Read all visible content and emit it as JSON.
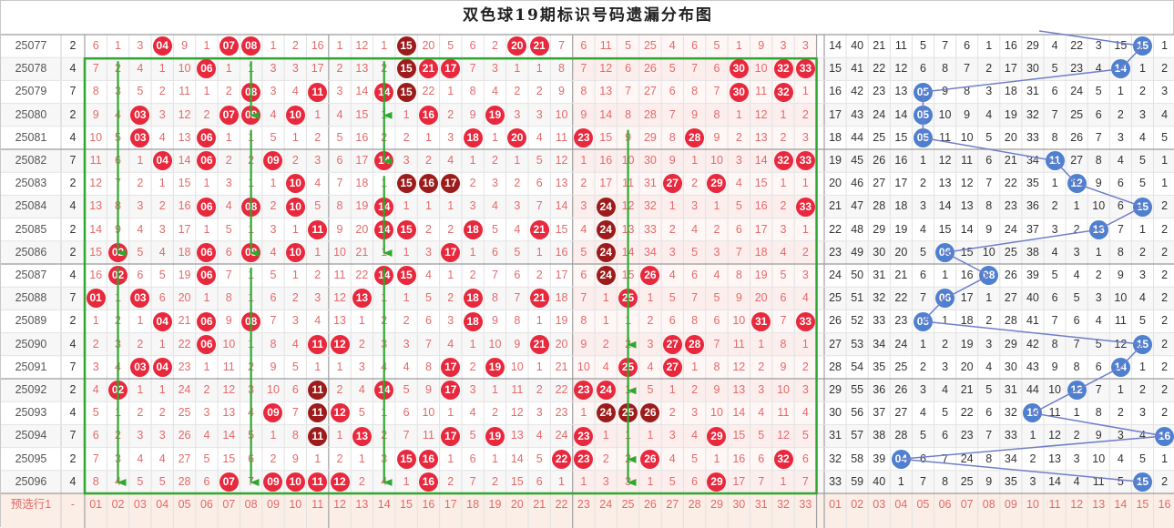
{
  "title": "双色球19期标识号码遗漏分布图",
  "colors": {
    "red_ball": "#e8283c",
    "dark_ball": "#9c1c1c",
    "blue_ball": "#4f7fcf",
    "green_box": "#2ea82e"
  },
  "footer_label": "预选行1",
  "footer_dash": "-",
  "red_numbers": [
    "01",
    "02",
    "03",
    "04",
    "05",
    "06",
    "07",
    "08",
    "09",
    "10",
    "11",
    "12",
    "13",
    "14",
    "15",
    "16",
    "17",
    "18",
    "19",
    "20",
    "21",
    "22",
    "23",
    "24",
    "25",
    "26",
    "27",
    "28",
    "29",
    "30",
    "31",
    "32",
    "33"
  ],
  "blue_numbers": [
    "01",
    "02",
    "03",
    "04",
    "05",
    "06",
    "07",
    "08",
    "09",
    "10",
    "11",
    "12",
    "13",
    "14",
    "15",
    "16"
  ],
  "rows": [
    {
      "issue": "25077",
      "k": "2",
      "red": [
        6,
        1,
        3,
        "04",
        9,
        1,
        "07",
        "08",
        1,
        2,
        16,
        1,
        12,
        1,
        "15",
        20,
        5,
        6,
        2,
        "20",
        "21",
        7,
        6,
        11,
        5,
        25,
        4,
        6,
        5,
        1,
        9,
        3,
        3
      ],
      "blue": [
        14,
        40,
        21,
        11,
        5,
        7,
        6,
        1,
        16,
        29,
        4,
        22,
        3,
        15,
        "15",
        1
      ]
    },
    {
      "issue": "25078",
      "k": "4",
      "red": [
        7,
        2,
        4,
        1,
        10,
        "06",
        1,
        1,
        3,
        3,
        17,
        2,
        13,
        2,
        "15",
        "21",
        "17",
        7,
        3,
        1,
        1,
        8,
        7,
        12,
        6,
        26,
        5,
        7,
        6,
        "30",
        10,
        "32",
        "33"
      ],
      "blue": [
        15,
        41,
        22,
        12,
        6,
        8,
        7,
        2,
        17,
        30,
        5,
        23,
        4,
        "14",
        1,
        2
      ]
    },
    {
      "issue": "25079",
      "k": "7",
      "red": [
        8,
        3,
        5,
        2,
        11,
        1,
        2,
        "08",
        3,
        4,
        "11",
        3,
        14,
        "14",
        "15",
        22,
        1,
        8,
        4,
        2,
        2,
        9,
        8,
        13,
        7,
        27,
        6,
        8,
        7,
        "30",
        11,
        "32",
        1
      ],
      "blue": [
        16,
        42,
        23,
        13,
        "05",
        9,
        8,
        3,
        18,
        31,
        6,
        24,
        5,
        1,
        2,
        3
      ]
    },
    {
      "issue": "25080",
      "k": "2",
      "red": [
        9,
        4,
        "03",
        3,
        12,
        2,
        "07",
        "08",
        4,
        "10",
        1,
        4,
        15,
        1,
        1,
        "16",
        2,
        9,
        "19",
        3,
        3,
        10,
        9,
        14,
        8,
        28,
        7,
        9,
        8,
        1,
        12,
        1,
        2
      ],
      "blue": [
        17,
        43,
        24,
        14,
        "05",
        10,
        9,
        4,
        19,
        32,
        7,
        25,
        6,
        2,
        3,
        4
      ]
    },
    {
      "issue": "25081",
      "k": "4",
      "red": [
        10,
        5,
        "03",
        4,
        13,
        "06",
        1,
        1,
        5,
        1,
        2,
        5,
        16,
        2,
        2,
        1,
        3,
        "18",
        1,
        "20",
        4,
        11,
        "23",
        15,
        9,
        29,
        8,
        "28",
        9,
        2,
        13,
        2,
        3
      ],
      "blue": [
        18,
        44,
        25,
        15,
        "05",
        11,
        10,
        5,
        20,
        33,
        8,
        26,
        7,
        3,
        4,
        5
      ]
    },
    {
      "issue": "25082",
      "k": "7",
      "red": [
        11,
        6,
        1,
        "04",
        14,
        "06",
        2,
        2,
        "09",
        2,
        3,
        6,
        17,
        "14",
        3,
        2,
        4,
        1,
        2,
        1,
        5,
        12,
        1,
        16,
        10,
        30,
        9,
        1,
        10,
        3,
        14,
        "32",
        "33"
      ],
      "blue": [
        19,
        45,
        26,
        16,
        1,
        12,
        11,
        6,
        21,
        34,
        "11",
        27,
        8,
        4,
        5,
        1
      ]
    },
    {
      "issue": "25083",
      "k": "2",
      "red": [
        12,
        7,
        2,
        1,
        15,
        1,
        3,
        1,
        1,
        "10",
        4,
        7,
        18,
        1,
        "15",
        "16",
        "17",
        2,
        3,
        2,
        6,
        13,
        2,
        17,
        11,
        31,
        "27",
        2,
        "29",
        4,
        15,
        1,
        1
      ],
      "blue": [
        20,
        46,
        27,
        17,
        2,
        13,
        12,
        7,
        22,
        35,
        1,
        "12",
        9,
        6,
        5,
        1
      ]
    },
    {
      "issue": "25084",
      "k": "4",
      "red": [
        13,
        8,
        3,
        2,
        16,
        "06",
        4,
        "08",
        2,
        "10",
        5,
        8,
        19,
        "14",
        1,
        1,
        1,
        3,
        4,
        3,
        7,
        14,
        3,
        "24",
        12,
        32,
        1,
        3,
        1,
        5,
        16,
        2,
        "33"
      ],
      "blue": [
        21,
        47,
        28,
        18,
        3,
        14,
        13,
        8,
        23,
        36,
        2,
        1,
        10,
        6,
        "15",
        2
      ]
    },
    {
      "issue": "25085",
      "k": "2",
      "red": [
        14,
        9,
        4,
        3,
        17,
        1,
        5,
        1,
        3,
        1,
        "11",
        9,
        20,
        "14",
        "15",
        2,
        2,
        "18",
        5,
        4,
        "21",
        15,
        4,
        "24",
        13,
        33,
        2,
        4,
        2,
        6,
        17,
        3,
        1
      ],
      "blue": [
        22,
        48,
        29,
        19,
        4,
        15,
        14,
        9,
        24,
        37,
        3,
        2,
        "13",
        7,
        1,
        2
      ]
    },
    {
      "issue": "25086",
      "k": "2",
      "red": [
        15,
        "02",
        5,
        4,
        18,
        "06",
        6,
        "08",
        4,
        "10",
        1,
        10,
        21,
        1,
        1,
        3,
        "17",
        1,
        6,
        5,
        1,
        16,
        5,
        "24",
        14,
        34,
        3,
        5,
        3,
        7,
        18,
        4,
        2
      ],
      "blue": [
        23,
        49,
        30,
        20,
        5,
        "06",
        15,
        10,
        25,
        38,
        4,
        3,
        1,
        8,
        2,
        2
      ]
    },
    {
      "issue": "25087",
      "k": "4",
      "red": [
        16,
        "02",
        6,
        5,
        19,
        "06",
        7,
        1,
        5,
        1,
        2,
        11,
        22,
        "14",
        "15",
        4,
        1,
        2,
        7,
        6,
        2,
        17,
        6,
        "24",
        15,
        "26",
        4,
        6,
        4,
        8,
        19,
        5,
        3
      ],
      "blue": [
        24,
        50,
        31,
        21,
        6,
        1,
        16,
        "08",
        26,
        39,
        5,
        4,
        2,
        9,
        3,
        2
      ]
    },
    {
      "issue": "25088",
      "k": "7",
      "red": [
        "01",
        1,
        "03",
        6,
        20,
        1,
        8,
        1,
        6,
        2,
        3,
        12,
        "13",
        1,
        1,
        5,
        2,
        "18",
        8,
        7,
        "21",
        18,
        7,
        1,
        "25",
        1,
        5,
        7,
        5,
        9,
        20,
        6,
        4
      ],
      "blue": [
        25,
        51,
        32,
        22,
        7,
        "06",
        17,
        1,
        27,
        40,
        6,
        5,
        3,
        10,
        4,
        2
      ]
    },
    {
      "issue": "25089",
      "k": "2",
      "red": [
        1,
        2,
        1,
        "04",
        21,
        "06",
        9,
        "08",
        7,
        3,
        4,
        13,
        1,
        2,
        2,
        6,
        3,
        "18",
        9,
        8,
        1,
        19,
        8,
        1,
        1,
        2,
        6,
        8,
        6,
        10,
        "31",
        7,
        "33"
      ],
      "blue": [
        26,
        52,
        33,
        23,
        "05",
        1,
        18,
        2,
        28,
        41,
        7,
        6,
        4,
        11,
        5,
        2
      ]
    },
    {
      "issue": "25090",
      "k": "4",
      "red": [
        2,
        3,
        2,
        1,
        22,
        "06",
        10,
        1,
        8,
        4,
        "11",
        "12",
        2,
        3,
        3,
        7,
        4,
        1,
        10,
        9,
        "21",
        20,
        9,
        2,
        2,
        3,
        "27",
        "28",
        7,
        11,
        1,
        8,
        1
      ],
      "blue": [
        27,
        53,
        34,
        24,
        1,
        2,
        19,
        3,
        29,
        42,
        8,
        7,
        5,
        12,
        "15",
        2
      ]
    },
    {
      "issue": "25091",
      "k": "7",
      "red": [
        3,
        4,
        "03",
        "04",
        23,
        1,
        11,
        2,
        9,
        5,
        1,
        1,
        3,
        4,
        4,
        8,
        "17",
        2,
        "19",
        10,
        1,
        21,
        10,
        4,
        "25",
        4,
        "27",
        1,
        8,
        12,
        2,
        9,
        2
      ],
      "blue": [
        28,
        54,
        35,
        25,
        2,
        3,
        20,
        4,
        30,
        43,
        9,
        8,
        6,
        "14",
        1,
        2
      ]
    },
    {
      "issue": "25092",
      "k": "2",
      "red": [
        4,
        "02",
        1,
        1,
        24,
        2,
        12,
        3,
        10,
        6,
        "11",
        2,
        4,
        "14",
        5,
        9,
        "17",
        3,
        1,
        11,
        2,
        22,
        "23",
        "24",
        1,
        5,
        1,
        2,
        9,
        13,
        3,
        10,
        3
      ],
      "blue": [
        29,
        55,
        36,
        26,
        3,
        4,
        21,
        5,
        31,
        44,
        10,
        "12",
        7,
        1,
        2,
        2
      ]
    },
    {
      "issue": "25093",
      "k": "4",
      "red": [
        5,
        1,
        2,
        2,
        25,
        3,
        13,
        4,
        "09",
        7,
        "11",
        "12",
        5,
        1,
        6,
        10,
        1,
        4,
        2,
        12,
        3,
        23,
        1,
        "24",
        "25",
        "26",
        2,
        3,
        10,
        14,
        4,
        11,
        4
      ],
      "blue": [
        30,
        56,
        37,
        27,
        4,
        5,
        22,
        6,
        32,
        "10",
        11,
        1,
        8,
        2,
        3,
        2
      ]
    },
    {
      "issue": "25094",
      "k": "7",
      "red": [
        6,
        2,
        3,
        3,
        26,
        4,
        14,
        5,
        1,
        8,
        "11",
        1,
        "13",
        2,
        7,
        11,
        "17",
        5,
        "19",
        13,
        4,
        24,
        "23",
        1,
        1,
        1,
        3,
        4,
        "29",
        15,
        5,
        12,
        5
      ],
      "blue": [
        31,
        57,
        38,
        28,
        5,
        6,
        23,
        7,
        33,
        1,
        12,
        2,
        9,
        3,
        4,
        "16"
      ]
    },
    {
      "issue": "25095",
      "k": "2",
      "red": [
        7,
        3,
        4,
        4,
        27,
        5,
        15,
        6,
        2,
        9,
        1,
        2,
        1,
        3,
        "15",
        "16",
        1,
        6,
        1,
        14,
        5,
        "22",
        "23",
        2,
        2,
        "26",
        4,
        5,
        1,
        16,
        6,
        "32",
        6
      ],
      "blue": [
        32,
        58,
        39,
        "04",
        6,
        7,
        24,
        8,
        34,
        2,
        13,
        3,
        10,
        4,
        5,
        1
      ]
    },
    {
      "issue": "25096",
      "k": "4",
      "red": [
        8,
        4,
        5,
        5,
        28,
        6,
        "07",
        7,
        "09",
        "10",
        "11",
        "12",
        2,
        4,
        1,
        "16",
        2,
        7,
        2,
        15,
        6,
        1,
        1,
        3,
        3,
        1,
        5,
        6,
        "29",
        17,
        7,
        1,
        7
      ],
      "blue": [
        33,
        59,
        40,
        1,
        7,
        8,
        25,
        9,
        35,
        3,
        14,
        4,
        11,
        5,
        "15",
        2
      ]
    }
  ]
}
